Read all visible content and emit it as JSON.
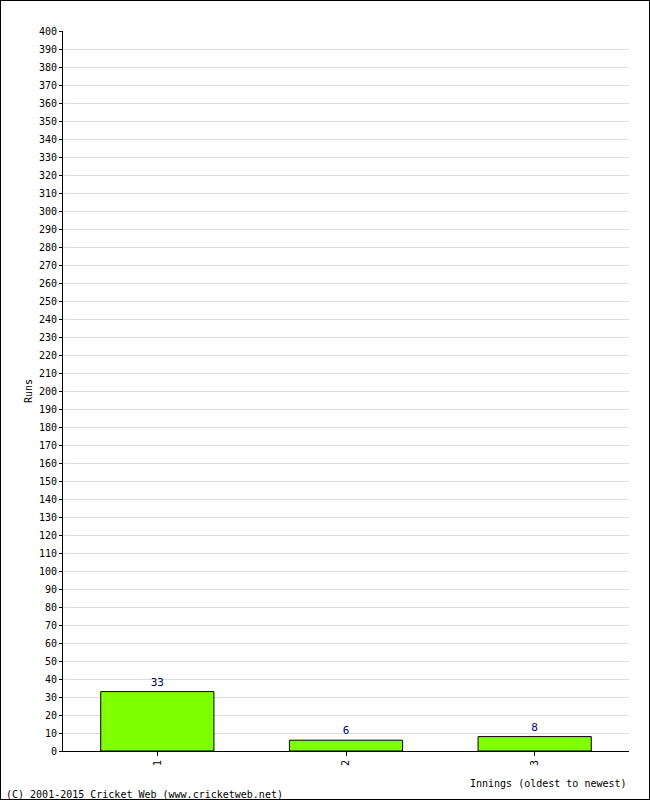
{
  "chart_data": {
    "type": "bar",
    "categories": [
      "1",
      "2",
      "3"
    ],
    "values": [
      33,
      6,
      8
    ],
    "color": "#80ff00",
    "x_label": "Innings (oldest to newest)",
    "y_label": "Runs",
    "ylim": [
      0,
      400
    ],
    "yticks": [
      0,
      10,
      20,
      30,
      40,
      50,
      60,
      70,
      80,
      90,
      100,
      110,
      120,
      130,
      140,
      150,
      160,
      170,
      180,
      190,
      200,
      210,
      220,
      230,
      240,
      250,
      260,
      270,
      280,
      290,
      300,
      310,
      320,
      330,
      340,
      350,
      360,
      370,
      380,
      390,
      400
    ],
    "grid": true,
    "data_labels": true,
    "annotations": [
      "(C) 2001-2015 Cricket Web (www.cricketweb.net)"
    ]
  }
}
